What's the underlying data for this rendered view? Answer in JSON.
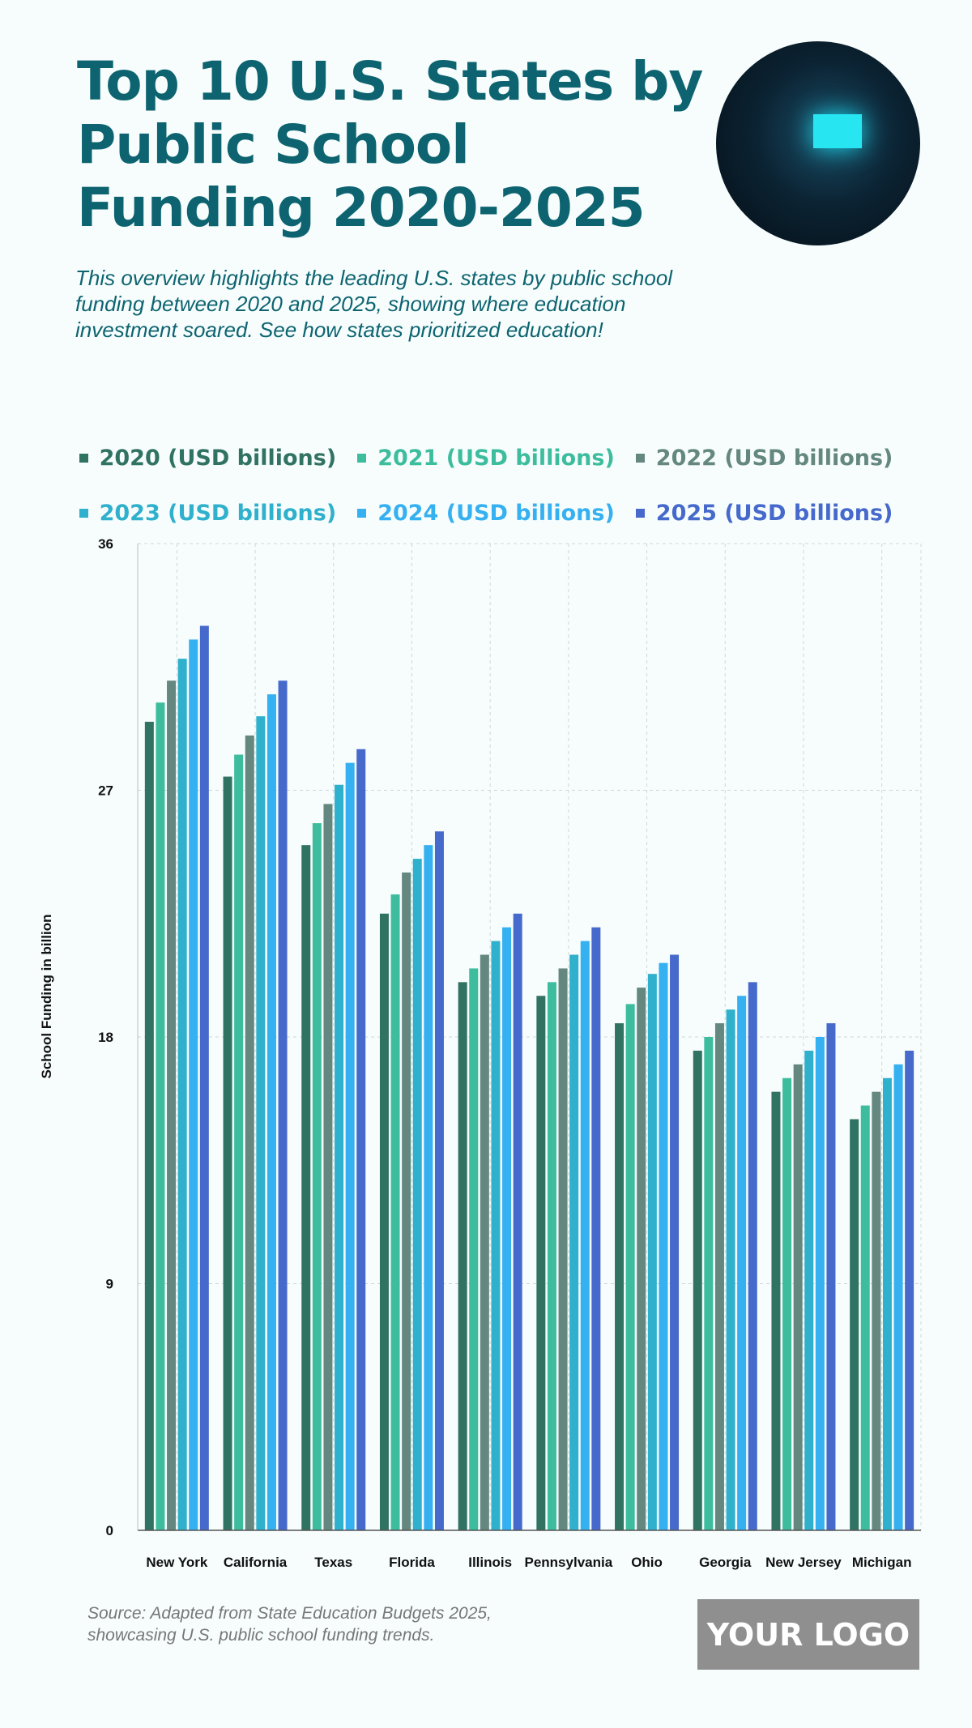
{
  "header": {
    "title": "Top 10 U.S. States by Public School Funding 2020-2025",
    "subtitle": "This overview highlights the leading U.S. states by public school funding between 2020 and 2025, showing where education investment soared. See how states prioritized education!"
  },
  "footer": {
    "source": "Source: Adapted from State Education Budgets 2025, showcasing U.S. public school funding trends.",
    "logo": "YOUR LOGO"
  },
  "chart_data": {
    "type": "bar",
    "title": "Top 10 U.S. States by Public School Funding 2020-2025",
    "xlabel": "",
    "ylabel": "School Funding in billion",
    "ylim": [
      0,
      36
    ],
    "yticks": [
      "0",
      "9",
      "18",
      "27",
      "36"
    ],
    "grid": true,
    "legend": "top",
    "categories": [
      "New York",
      "California",
      "Texas",
      "Florida",
      "Illinois",
      "Pennsylvania",
      "Ohio",
      "Georgia",
      "New Jersey",
      "Michigan"
    ],
    "series": [
      {
        "name": "2020 (USD billions)",
        "color": "#317363",
        "values": [
          29.5,
          27.5,
          25,
          22.5,
          20,
          19.5,
          18.5,
          17.5,
          16,
          15
        ]
      },
      {
        "name": "2021 (USD billions)",
        "color": "#3dbd9d",
        "values": [
          30.2,
          28.3,
          25.8,
          23.2,
          20.5,
          20,
          19.2,
          18,
          16.5,
          15.5
        ]
      },
      {
        "name": "2022 (USD billions)",
        "color": "#64877f",
        "values": [
          31,
          29,
          26.5,
          24,
          21,
          20.5,
          19.8,
          18.5,
          17,
          16
        ]
      },
      {
        "name": "2023 (USD billions)",
        "color": "#2fb0cc",
        "values": [
          31.8,
          29.7,
          27.2,
          24.5,
          21.5,
          21,
          20.3,
          19,
          17.5,
          16.5
        ]
      },
      {
        "name": "2024 (USD billions)",
        "color": "#35b0f0",
        "values": [
          32.5,
          30.5,
          28,
          25,
          22,
          21.5,
          20.7,
          19.5,
          18,
          17
        ]
      },
      {
        "name": "2025 (USD billions)",
        "color": "#4669cc",
        "values": [
          33,
          31,
          28.5,
          25.5,
          22.5,
          22,
          21,
          20,
          18.5,
          17.5
        ]
      }
    ]
  }
}
